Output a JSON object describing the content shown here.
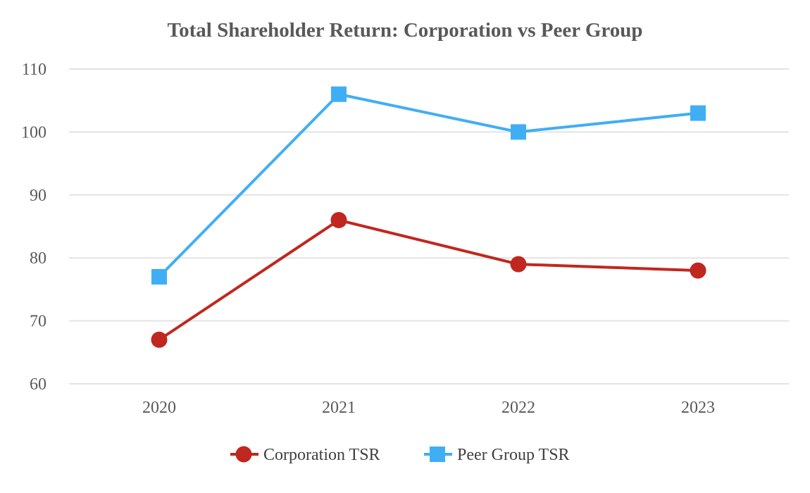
{
  "chart_data": {
    "type": "line",
    "title": "Total Shareholder Return:  Corporation vs Peer Group",
    "xlabel": "",
    "ylabel": "",
    "categories": [
      "2020",
      "2021",
      "2022",
      "2023"
    ],
    "ylim": [
      60,
      110
    ],
    "yticks": [
      60,
      70,
      80,
      90,
      100,
      110
    ],
    "ytick_labels": [
      "60",
      "70",
      "80",
      "90",
      "100",
      "110"
    ],
    "grid": true,
    "legend_position": "bottom-center",
    "series": [
      {
        "name": "Corporation TSR",
        "values": [
          67,
          86,
          79,
          78
        ],
        "color": "#C0271F",
        "marker": "circle"
      },
      {
        "name": "Peer Group TSR",
        "values": [
          77,
          106,
          100,
          103
        ],
        "color": "#40AEF5",
        "marker": "square"
      }
    ]
  },
  "colors": {
    "title": "#595959",
    "tick_labels": "#595959",
    "legend_text": "#404040",
    "grid": "#E3E3E3"
  }
}
